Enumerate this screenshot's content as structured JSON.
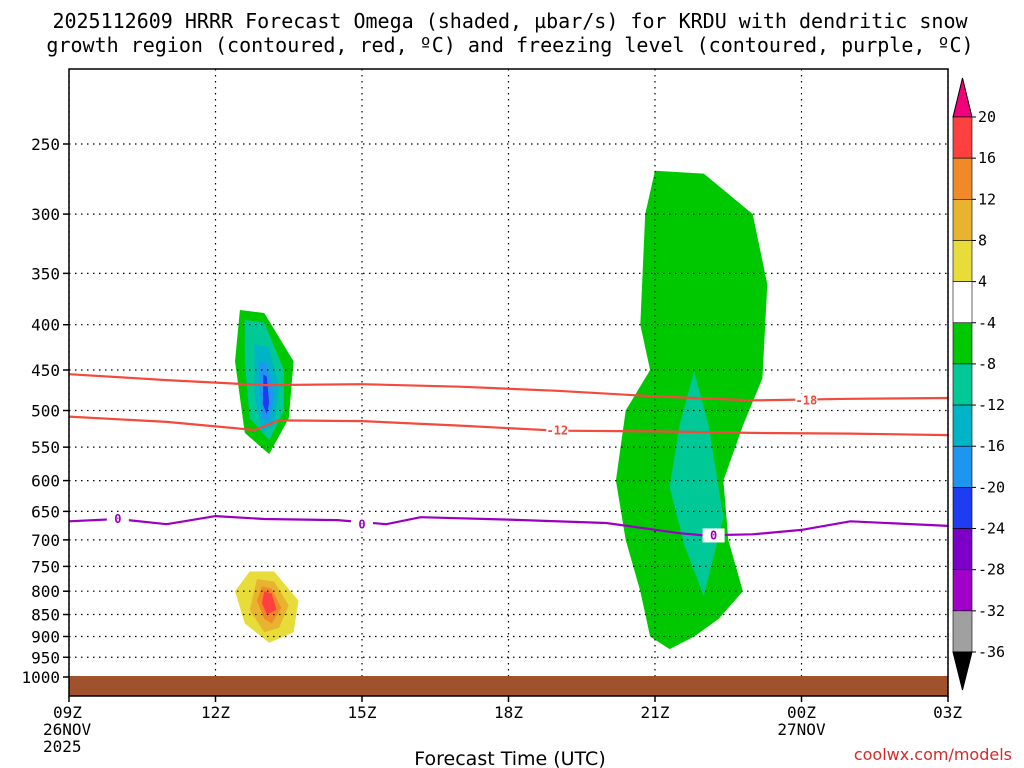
{
  "chart_data": {
    "type": "time-height contour",
    "title_line1": "2025112609 HRRR Forecast Omega (shaded, µbar/s) for KRDU with dendritic snow",
    "title_line2": "growth region (contoured, red, ºC) and freezing level (contoured, purple, ºC)",
    "xlabel": "Forecast Time (UTC)",
    "credit": "coolwx.com/models",
    "x_range_hours": [
      0,
      18
    ],
    "y_range_hpa": [
      200,
      1020
    ],
    "y_ticks": [
      "250",
      "300",
      "350",
      "400",
      "450",
      "500",
      "550",
      "600",
      "650",
      "700",
      "750",
      "800",
      "850",
      "900",
      "950",
      "1000"
    ],
    "x_ticks": [
      {
        "label": "09Z",
        "hour": 0
      },
      {
        "label": "12Z",
        "hour": 3
      },
      {
        "label": "15Z",
        "hour": 6
      },
      {
        "label": "18Z",
        "hour": 9
      },
      {
        "label": "21Z",
        "hour": 12
      },
      {
        "label": "00Z",
        "hour": 15
      },
      {
        "label": "03Z",
        "hour": 18
      }
    ],
    "date_labels": [
      {
        "hour": 0,
        "day": "26NOV",
        "year": "2025"
      },
      {
        "hour": 15,
        "day": "27NOV",
        "year": ""
      }
    ],
    "colorbar_levels": [
      "20",
      "16",
      "12",
      "8",
      "4",
      "-4",
      "-8",
      "-12",
      "-16",
      "-20",
      "-24",
      "-28",
      "-32",
      "-36"
    ],
    "colorbar_colors": [
      "#f0007a",
      "#ff4040",
      "#f08a28",
      "#e8b430",
      "#e8dc3a",
      "#ffffff",
      "#00c800",
      "#00c896",
      "#00b4c8",
      "#1e96f0",
      "#1e3cf0",
      "#7d00c8",
      "#a000c8",
      "#a0a0a0",
      "#000000"
    ],
    "contours": [
      {
        "label": "-18",
        "color": "#f24a3c",
        "label_at": {
          "hour": 15.1,
          "hpa": 487
        },
        "points": [
          [
            0,
            455
          ],
          [
            2,
            462
          ],
          [
            4,
            468
          ],
          [
            6,
            467
          ],
          [
            8,
            470
          ],
          [
            10,
            475
          ],
          [
            12,
            482
          ],
          [
            14,
            487
          ],
          [
            16,
            485
          ],
          [
            18,
            484
          ]
        ]
      },
      {
        "label": "-12",
        "color": "#f24a3c",
        "label_at": {
          "hour": 10,
          "hpa": 527
        },
        "points": [
          [
            0,
            508
          ],
          [
            2,
            515
          ],
          [
            3.8,
            526
          ],
          [
            4.3,
            513
          ],
          [
            6,
            514
          ],
          [
            8,
            520
          ],
          [
            10,
            527
          ],
          [
            12,
            528
          ],
          [
            14,
            530
          ],
          [
            16,
            531
          ],
          [
            18,
            533
          ]
        ]
      },
      {
        "label": "0",
        "color": "#9a00c0",
        "label_at": {
          "hour": 1,
          "hpa": 663
        },
        "points": [
          [
            0,
            667
          ],
          [
            1,
            663
          ],
          [
            2,
            672
          ],
          [
            3,
            658
          ],
          [
            4,
            663
          ],
          [
            5.5,
            665
          ],
          [
            6.5,
            672
          ],
          [
            7.2,
            660
          ],
          [
            9,
            664
          ],
          [
            11,
            670
          ],
          [
            12.5,
            688
          ],
          [
            13,
            692
          ],
          [
            14,
            690
          ],
          [
            15,
            682
          ],
          [
            16,
            667
          ],
          [
            18,
            675
          ]
        ],
        "labels_at": [
          {
            "hour": 1,
            "hpa": 663
          },
          {
            "hour": 6,
            "hpa": 673
          },
          {
            "hour": 13.2,
            "hpa": 692
          }
        ]
      }
    ],
    "shaded_regions": [
      {
        "value": -6,
        "color": "#00c800",
        "points": [
          [
            12,
            268
          ],
          [
            13,
            270
          ],
          [
            14,
            300
          ],
          [
            14.3,
            360
          ],
          [
            14.2,
            460
          ],
          [
            13.8,
            520
          ],
          [
            13.4,
            600
          ],
          [
            13.5,
            700
          ],
          [
            13.8,
            800
          ],
          [
            13.3,
            860
          ],
          [
            12.8,
            900
          ],
          [
            12.3,
            930
          ],
          [
            11.9,
            900
          ],
          [
            11.7,
            800
          ],
          [
            11.4,
            700
          ],
          [
            11.2,
            600
          ],
          [
            11.4,
            500
          ],
          [
            11.9,
            450
          ],
          [
            11.7,
            400
          ],
          [
            11.8,
            300
          ]
        ]
      },
      {
        "value": -10,
        "color": "#00c896",
        "points": [
          [
            12.8,
            452
          ],
          [
            13.1,
            520
          ],
          [
            13.4,
            660
          ],
          [
            13,
            810
          ],
          [
            12.6,
            710
          ],
          [
            12.3,
            610
          ],
          [
            12.5,
            520
          ]
        ]
      },
      {
        "value": -6,
        "color": "#00c800",
        "points": [
          [
            3.5,
            385
          ],
          [
            4,
            388
          ],
          [
            4.6,
            440
          ],
          [
            4.5,
            510
          ],
          [
            4.1,
            560
          ],
          [
            3.6,
            530
          ],
          [
            3.4,
            440
          ]
        ]
      },
      {
        "value": -10,
        "color": "#00c896",
        "points": [
          [
            3.6,
            395
          ],
          [
            4,
            398
          ],
          [
            4.4,
            450
          ],
          [
            4.4,
            500
          ],
          [
            4.1,
            540
          ],
          [
            3.7,
            510
          ],
          [
            3.6,
            440
          ]
        ]
      },
      {
        "value": -14,
        "color": "#00b4c8",
        "points": [
          [
            3.8,
            420
          ],
          [
            4.1,
            425
          ],
          [
            4.3,
            470
          ],
          [
            4.2,
            520
          ],
          [
            3.95,
            530
          ],
          [
            3.8,
            480
          ]
        ]
      },
      {
        "value": -18,
        "color": "#1e96f0",
        "points": [
          [
            3.9,
            440
          ],
          [
            4.05,
            442
          ],
          [
            4.2,
            480
          ],
          [
            4.1,
            515
          ],
          [
            3.95,
            510
          ],
          [
            3.9,
            470
          ]
        ]
      },
      {
        "value": -22,
        "color": "#1e3cf0",
        "points": [
          [
            3.98,
            455
          ],
          [
            4.05,
            458
          ],
          [
            4.1,
            490
          ],
          [
            4.05,
            505
          ],
          [
            3.97,
            492
          ]
        ]
      },
      {
        "value": 6,
        "color": "#e8dc3a",
        "points": [
          [
            3.7,
            760
          ],
          [
            4.2,
            760
          ],
          [
            4.7,
            820
          ],
          [
            4.6,
            890
          ],
          [
            4.1,
            915
          ],
          [
            3.6,
            870
          ],
          [
            3.4,
            800
          ]
        ]
      },
      {
        "value": 10,
        "color": "#e8b430",
        "points": [
          [
            3.85,
            775
          ],
          [
            4.2,
            780
          ],
          [
            4.5,
            830
          ],
          [
            4.3,
            880
          ],
          [
            4,
            890
          ],
          [
            3.7,
            840
          ]
        ]
      },
      {
        "value": 14,
        "color": "#f08a28",
        "points": [
          [
            3.95,
            790
          ],
          [
            4.15,
            795
          ],
          [
            4.35,
            835
          ],
          [
            4.15,
            870
          ],
          [
            4,
            860
          ],
          [
            3.85,
            820
          ]
        ]
      },
      {
        "value": 18,
        "color": "#ff4040",
        "points": [
          [
            4,
            800
          ],
          [
            4.15,
            805
          ],
          [
            4.25,
            840
          ],
          [
            4.05,
            850
          ],
          [
            3.95,
            825
          ]
        ]
      }
    ]
  }
}
